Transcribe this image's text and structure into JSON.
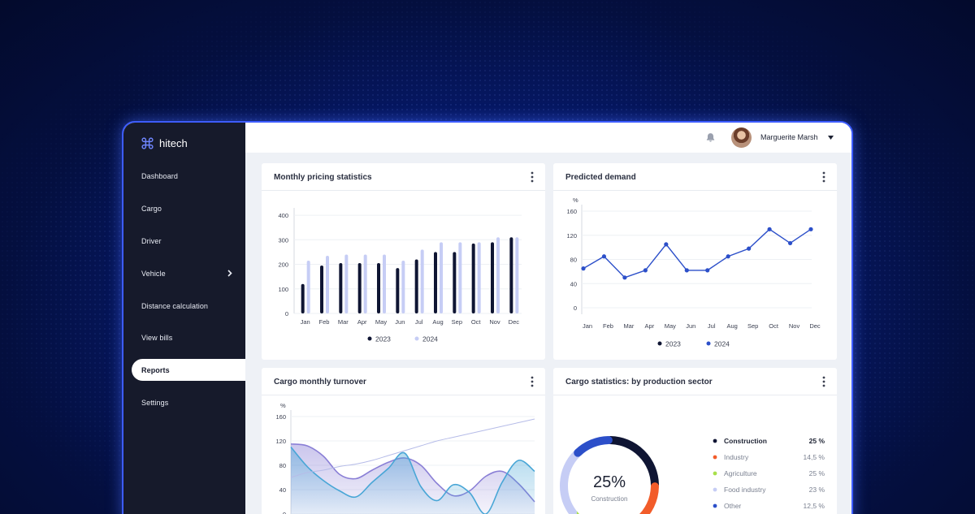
{
  "app": {
    "name": "hitech"
  },
  "colors": {
    "accent": "#3d5cff",
    "sidebar": "#161a2b",
    "navy": "#0f1533",
    "lavender": "#c6cdf5",
    "line_blue": "#2c4fc9"
  },
  "sidebar": {
    "items": [
      {
        "label": "Dashboard",
        "active": false
      },
      {
        "label": "Cargo",
        "active": false
      },
      {
        "label": "Driver",
        "active": false
      },
      {
        "label": "Vehicle",
        "active": false,
        "has_submenu": true
      },
      {
        "label": "Distance calculation",
        "active": false
      },
      {
        "label": "View bills",
        "active": false
      },
      {
        "label": "Reports",
        "active": true
      },
      {
        "label": "Settings",
        "active": false
      }
    ]
  },
  "header": {
    "user_name": "Marguerite Marsh",
    "icons": [
      "bell-icon",
      "avatar",
      "caret-down-icon"
    ]
  },
  "cards": {
    "pricing": {
      "title": "Monthly pricing statistics"
    },
    "demand": {
      "title": "Predicted demand"
    },
    "turnover": {
      "title": "Cargo monthly turnover"
    },
    "sector": {
      "title": "Cargo statistics: by production sector"
    }
  },
  "chart_data": [
    {
      "id": "pricing",
      "type": "bar",
      "categories": [
        "Jan",
        "Feb",
        "Mar",
        "Apr",
        "May",
        "Jun",
        "Jul",
        "Aug",
        "Sep",
        "Oct",
        "Nov",
        "Dec"
      ],
      "yticks": [
        0,
        100,
        200,
        300,
        400
      ],
      "ylim": [
        0,
        430
      ],
      "series": [
        {
          "name": "2023",
          "color": "#0f1533",
          "values": [
            120,
            195,
            205,
            205,
            205,
            185,
            220,
            250,
            250,
            285,
            290,
            310
          ]
        },
        {
          "name": "2024",
          "color": "#c6cdf5",
          "values": [
            215,
            235,
            240,
            240,
            240,
            215,
            260,
            290,
            290,
            290,
            310,
            310
          ]
        }
      ],
      "legend": "bottom"
    },
    {
      "id": "demand",
      "type": "line",
      "ylabel": "%",
      "categories": [
        "Jan",
        "Feb",
        "Mar",
        "Apr",
        "May",
        "Jun",
        "Jul",
        "Aug",
        "Sep",
        "Oct",
        "Nov",
        "Dec"
      ],
      "yticks": [
        0,
        40,
        80,
        120,
        160
      ],
      "ylim": [
        0,
        160
      ],
      "series": [
        {
          "name": "2024",
          "color": "#2c4fc9",
          "values": [
            65,
            85,
            50,
            62,
            105,
            62,
            62,
            85,
            98,
            130,
            107,
            130
          ]
        }
      ],
      "legend_entries": [
        {
          "name": "2023",
          "color": "#0f1533"
        },
        {
          "name": "2024",
          "color": "#2c4fc9"
        }
      ],
      "legend": "bottom"
    },
    {
      "id": "turnover",
      "type": "area",
      "ylabel": "%",
      "yticks": [
        0,
        40,
        80,
        120,
        160
      ],
      "ylim": [
        0,
        160
      ],
      "series": [
        {
          "color": "#8a7fd6",
          "values": [
            115,
            112,
            95,
            65,
            58,
            72,
            85,
            92,
            80,
            50,
            30,
            38,
            62,
            70,
            50,
            20
          ]
        },
        {
          "color": "#48a6d6",
          "values": [
            110,
            78,
            55,
            38,
            28,
            52,
            75,
            100,
            45,
            22,
            48,
            35,
            0,
            52,
            88,
            70
          ]
        },
        {
          "color": "#b6bce8",
          "values": [
            60,
            68,
            72,
            78,
            82,
            88,
            96,
            104,
            112,
            120,
            126,
            132,
            138,
            144,
            150,
            156
          ]
        }
      ]
    },
    {
      "id": "sector",
      "type": "pie",
      "center_value": "25%",
      "center_label": "Construction",
      "slices": [
        {
          "label": "Construction",
          "value": 25,
          "display": "25 %",
          "color": "#0f1533",
          "bold": true
        },
        {
          "label": "Industry",
          "value": 14.5,
          "display": "14,5 %",
          "color": "#f25c2a"
        },
        {
          "label": "Agriculture",
          "value": 25,
          "display": "25 %",
          "color": "#a8e04a"
        },
        {
          "label": "Food industry",
          "value": 23,
          "display": "23 %",
          "color": "#c6cdf5"
        },
        {
          "label": "Other",
          "value": 12.5,
          "display": "12,5 %",
          "color": "#2c4fc9"
        }
      ]
    }
  ]
}
